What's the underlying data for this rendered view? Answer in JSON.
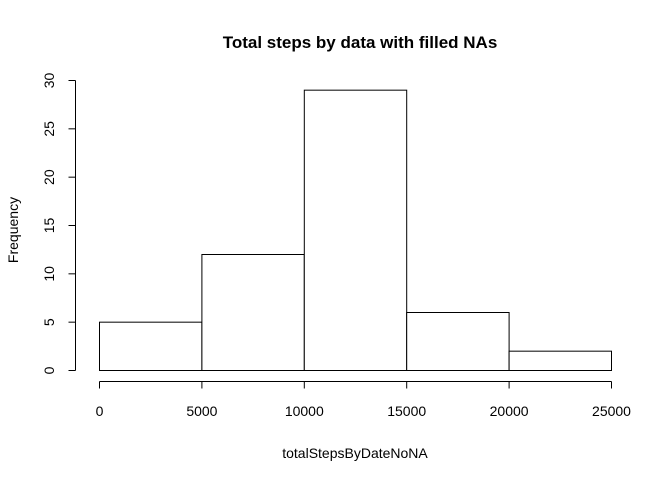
{
  "chart_data": {
    "type": "bar",
    "title": "Total steps by data with filled NAs",
    "xlabel": "totalStepsByDateNoNA",
    "ylabel": "Frequency",
    "bins": [
      {
        "from": 0,
        "to": 5000,
        "count": 5
      },
      {
        "from": 5000,
        "to": 10000,
        "count": 12
      },
      {
        "from": 10000,
        "to": 15000,
        "count": 29
      },
      {
        "from": 15000,
        "to": 20000,
        "count": 6
      },
      {
        "from": 20000,
        "to": 25000,
        "count": 2
      }
    ],
    "xlim": [
      0,
      25000
    ],
    "ylim": [
      0,
      30
    ],
    "xticks": [
      0,
      5000,
      10000,
      15000,
      20000,
      25000
    ],
    "yticks": [
      0,
      5,
      10,
      15,
      20,
      25,
      30
    ],
    "grid": false,
    "colors": {
      "bar_fill": "#ffffff",
      "bar_stroke": "#000000"
    }
  }
}
